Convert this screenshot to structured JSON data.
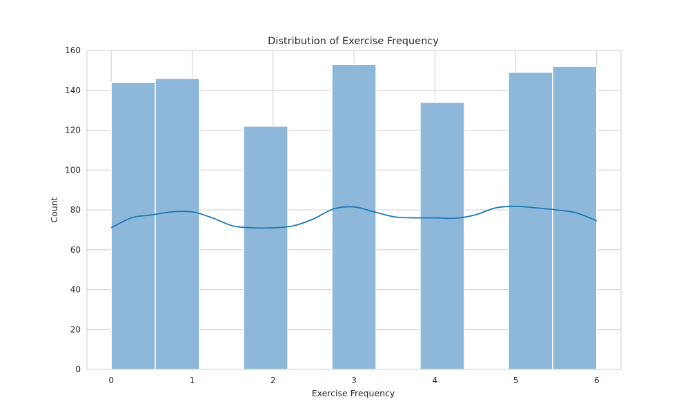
{
  "chart_data": {
    "type": "bar",
    "title": "Distribution of Exercise Frequency",
    "xlabel": "Exercise Frequency",
    "ylabel": "Count",
    "xlim": [
      -0.3,
      6.3
    ],
    "ylim": [
      0,
      160
    ],
    "xticks": [
      0,
      1,
      2,
      3,
      4,
      5,
      6
    ],
    "yticks": [
      0,
      20,
      40,
      60,
      80,
      100,
      120,
      140,
      160
    ],
    "grid": true,
    "bins": [
      {
        "x0": 0.0,
        "x1": 0.545,
        "value": 144
      },
      {
        "x0": 0.545,
        "x1": 1.09,
        "value": 146
      },
      {
        "x0": 1.09,
        "x1": 1.636,
        "value": 0
      },
      {
        "x0": 1.636,
        "x1": 2.182,
        "value": 122
      },
      {
        "x0": 2.182,
        "x1": 2.727,
        "value": 0
      },
      {
        "x0": 2.727,
        "x1": 3.273,
        "value": 153
      },
      {
        "x0": 3.273,
        "x1": 3.818,
        "value": 0
      },
      {
        "x0": 3.818,
        "x1": 4.364,
        "value": 134
      },
      {
        "x0": 4.364,
        "x1": 4.909,
        "value": 0
      },
      {
        "x0": 4.909,
        "x1": 5.455,
        "value": 149
      },
      {
        "x0": 5.455,
        "x1": 6.0,
        "value": 152
      }
    ],
    "kde": {
      "x": [
        0.0,
        0.25,
        0.5,
        0.75,
        1.0,
        1.25,
        1.5,
        1.75,
        2.0,
        2.25,
        2.5,
        2.75,
        3.0,
        3.25,
        3.5,
        3.75,
        4.0,
        4.25,
        4.5,
        4.75,
        5.0,
        5.25,
        5.5,
        5.75,
        6.0
      ],
      "y": [
        71,
        76,
        77.5,
        79,
        79,
        76,
        72,
        71,
        71,
        72,
        75.5,
        80.5,
        81.5,
        79,
        76.5,
        76,
        76,
        75.8,
        77.5,
        81,
        81.8,
        81,
        80,
        78.5,
        74.5
      ]
    },
    "colors": {
      "bar_fill": "#8db8d9",
      "bar_stroke": "#ffffff",
      "bar_edge": "#6f9cbf",
      "kde_line": "#1f77b4",
      "grid": "#cccccc",
      "axes_edge": "#cccccc",
      "text": "#262626"
    }
  }
}
